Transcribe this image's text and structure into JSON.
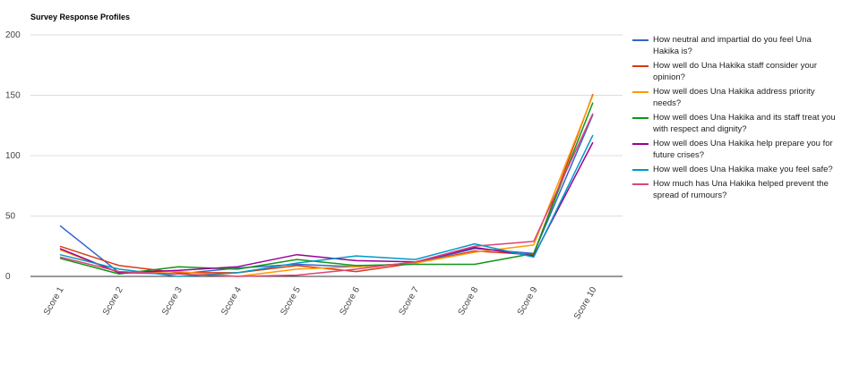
{
  "chart_data": {
    "type": "line",
    "title": "Survey Response Profiles",
    "xlabel": "",
    "ylabel": "",
    "categories": [
      "Score 1",
      "Score 2",
      "Score 3",
      "Score 4",
      "Score 5",
      "Score 6",
      "Score 7",
      "Score 8",
      "Score 9",
      "Score 10"
    ],
    "ylim": [
      0,
      200
    ],
    "yticks": [
      0,
      50,
      100,
      150,
      200
    ],
    "grid": true,
    "legend_position": "right",
    "series": [
      {
        "name": "How neutral and impartial do you feel Una Hakika is?",
        "color": "#3366cc",
        "values": [
          42,
          3,
          2,
          7,
          10,
          8,
          11,
          23,
          19,
          134
        ]
      },
      {
        "name": "How well do Una Hakika staff consider your opinion?",
        "color": "#dc3912",
        "values": [
          25,
          9,
          3,
          3,
          9,
          4,
          11,
          21,
          18,
          151
        ]
      },
      {
        "name": "How well does Una Hakika address priority needs?",
        "color": "#ff9900",
        "values": [
          22,
          3,
          4,
          0,
          6,
          8,
          11,
          20,
          26,
          150
        ]
      },
      {
        "name": "How well does Una Hakika and its staff treat you with respect and dignity?",
        "color": "#109618",
        "values": [
          15,
          2,
          8,
          6,
          14,
          9,
          10,
          10,
          19,
          144
        ]
      },
      {
        "name": "How well does Una Hakika help prepare you for future crises?",
        "color": "#990099",
        "values": [
          23,
          3,
          5,
          8,
          18,
          13,
          12,
          24,
          17,
          111
        ]
      },
      {
        "name": "How well does Una Hakika make you feel safe?",
        "color": "#0099c6",
        "values": [
          18,
          6,
          0,
          3,
          11,
          17,
          14,
          27,
          16,
          117
        ]
      },
      {
        "name": "How much has Una Hakika helped prevent the spread of rumours?",
        "color": "#dd4477",
        "values": [
          16,
          4,
          2,
          0,
          1,
          6,
          12,
          25,
          29,
          135
        ]
      }
    ]
  }
}
